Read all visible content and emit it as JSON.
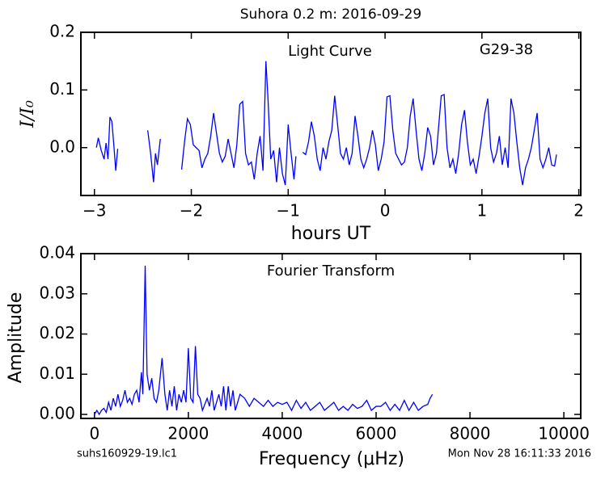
{
  "chart_data": [
    {
      "type": "line",
      "title": "Suhora 0.2 m:  2016-09-29",
      "annotations": [
        "Light Curve",
        "G29-38"
      ],
      "x_label": "hours UT",
      "y_label": "I/I₀",
      "color": "#0000ff",
      "xlim": [
        -3.14,
        2.02
      ],
      "ylim": [
        -0.083,
        0.2
      ],
      "xticks": [
        {
          "value": -3,
          "label": "−3"
        },
        {
          "value": -2,
          "label": "−2"
        },
        {
          "value": -1,
          "label": "−1"
        },
        0,
        1,
        2
      ],
      "yticks": [
        {
          "value": 0,
          "label": "0.0"
        },
        0.1,
        0.2
      ],
      "x": [
        -2.98,
        -2.96,
        -2.93,
        -2.9,
        -2.88,
        -2.86,
        -2.84,
        -2.82,
        -2.8,
        -2.78,
        -2.76,
        null,
        -2.45,
        -2.42,
        -2.39,
        -2.37,
        -2.35,
        -2.32,
        null,
        -2.1,
        -2.07,
        -2.04,
        -2.01,
        -1.98,
        -1.95,
        -1.92,
        -1.89,
        -1.86,
        -1.83,
        -1.8,
        -1.77,
        -1.74,
        -1.71,
        -1.68,
        -1.65,
        -1.62,
        -1.59,
        -1.56,
        -1.53,
        -1.5,
        -1.47,
        -1.44,
        -1.41,
        -1.38,
        -1.35,
        -1.32,
        -1.29,
        -1.26,
        -1.23,
        -1.21,
        -1.18,
        -1.15,
        -1.12,
        -1.09,
        -1.06,
        -1.03,
        -1.0,
        -0.97,
        -0.94,
        -0.92,
        null,
        -0.85,
        -0.82,
        -0.79,
        -0.76,
        -0.73,
        -0.7,
        -0.67,
        -0.64,
        -0.61,
        -0.58,
        -0.55,
        -0.52,
        -0.49,
        -0.46,
        -0.43,
        -0.4,
        -0.37,
        -0.34,
        -0.31,
        -0.28,
        -0.25,
        -0.22,
        -0.19,
        -0.16,
        -0.13,
        -0.1,
        -0.07,
        -0.04,
        -0.01,
        0.02,
        0.05,
        0.08,
        0.11,
        0.14,
        0.17,
        0.2,
        0.23,
        0.26,
        0.29,
        0.32,
        0.35,
        0.38,
        0.41,
        0.44,
        0.47,
        0.5,
        0.53,
        0.56,
        0.58,
        0.61,
        0.64,
        0.67,
        0.7,
        0.73,
        0.76,
        0.79,
        0.82,
        0.85,
        0.88,
        0.91,
        0.94,
        0.97,
        1.0,
        1.03,
        1.06,
        1.09,
        1.12,
        1.15,
        1.18,
        1.21,
        1.24,
        1.27,
        1.3,
        1.33,
        1.36,
        1.39,
        1.42,
        1.45,
        1.48,
        1.51,
        1.54,
        1.57,
        1.6,
        1.63,
        1.66,
        1.69,
        1.72,
        1.75,
        1.77
      ],
      "values": [
        0.0,
        0.017,
        -0.005,
        -0.02,
        0.008,
        -0.02,
        0.053,
        0.045,
        0.005,
        -0.04,
        -0.002,
        null,
        0.03,
        -0.01,
        -0.06,
        -0.01,
        -0.03,
        0.015,
        null,
        -0.038,
        0.01,
        0.05,
        0.04,
        0.005,
        0.0,
        -0.005,
        -0.035,
        -0.02,
        -0.01,
        0.02,
        0.06,
        0.025,
        -0.01,
        -0.025,
        -0.015,
        0.015,
        -0.01,
        -0.035,
        0.005,
        0.075,
        0.08,
        -0.01,
        -0.03,
        -0.025,
        -0.055,
        -0.01,
        0.02,
        -0.04,
        0.15,
        0.09,
        -0.02,
        -0.005,
        -0.06,
        0.0,
        -0.045,
        -0.065,
        0.04,
        -0.01,
        -0.055,
        -0.015,
        null,
        -0.008,
        -0.012,
        0.01,
        0.045,
        0.02,
        -0.02,
        -0.04,
        0.0,
        -0.02,
        0.01,
        0.03,
        0.09,
        0.04,
        -0.01,
        -0.02,
        0.0,
        -0.03,
        -0.01,
        0.055,
        0.02,
        -0.02,
        -0.035,
        -0.02,
        0.0,
        0.03,
        0.005,
        -0.04,
        -0.02,
        0.01,
        0.088,
        0.09,
        0.03,
        -0.01,
        -0.02,
        -0.03,
        -0.025,
        0.0,
        0.055,
        0.085,
        0.03,
        -0.02,
        -0.04,
        -0.01,
        0.035,
        0.02,
        -0.03,
        -0.01,
        0.05,
        0.09,
        0.092,
        0.0,
        -0.035,
        -0.02,
        -0.045,
        -0.01,
        0.04,
        0.065,
        0.01,
        -0.03,
        -0.02,
        -0.045,
        -0.015,
        0.02,
        0.06,
        0.085,
        0.0,
        -0.025,
        -0.01,
        0.02,
        -0.03,
        0.0,
        -0.035,
        0.085,
        0.06,
        0.01,
        -0.035,
        -0.065,
        -0.035,
        -0.02,
        0.0,
        0.03,
        0.06,
        -0.02,
        -0.035,
        -0.02,
        0.0,
        -0.03,
        -0.032,
        -0.012
      ]
    },
    {
      "type": "line",
      "annotations": [
        "Fourier Transform"
      ],
      "x_label": "Frequency (μHz)",
      "y_label": "Amplitude",
      "color": "#0000ff",
      "xlim": [
        -290,
        10360
      ],
      "ylim": [
        -0.001,
        0.04
      ],
      "xticks": [
        0,
        2000,
        4000,
        6000,
        8000,
        10000
      ],
      "yticks": [
        {
          "value": 0,
          "label": "0.00"
        },
        0.01,
        0.02,
        0.03,
        0.04
      ],
      "x": [
        0,
        50,
        100,
        150,
        200,
        250,
        300,
        350,
        400,
        450,
        500,
        550,
        600,
        650,
        700,
        750,
        800,
        850,
        900,
        950,
        1000,
        1030,
        1080,
        1120,
        1170,
        1220,
        1270,
        1320,
        1370,
        1440,
        1500,
        1550,
        1600,
        1650,
        1700,
        1750,
        1800,
        1850,
        1900,
        1950,
        2000,
        2050,
        2100,
        2150,
        2200,
        2250,
        2300,
        2400,
        2450,
        2500,
        2550,
        2650,
        2700,
        2750,
        2800,
        2850,
        2900,
        2950,
        3000,
        3100,
        3200,
        3300,
        3400,
        3500,
        3600,
        3700,
        3800,
        3900,
        4000,
        4100,
        4200,
        4300,
        4400,
        4500,
        4600,
        4700,
        4800,
        4900,
        5000,
        5100,
        5200,
        5300,
        5400,
        5500,
        5600,
        5700,
        5800,
        5900,
        6000,
        6100,
        6200,
        6300,
        6400,
        6500,
        6600,
        6700,
        6800,
        6900,
        7000,
        7100,
        7150,
        7200
      ],
      "values": [
        0.0,
        0.001,
        0.0,
        0.001,
        0.0015,
        0.0005,
        0.003,
        0.001,
        0.004,
        0.002,
        0.005,
        0.002,
        0.0035,
        0.006,
        0.003,
        0.004,
        0.0025,
        0.005,
        0.006,
        0.003,
        0.0105,
        0.005,
        0.037,
        0.01,
        0.006,
        0.009,
        0.004,
        0.003,
        0.006,
        0.014,
        0.005,
        0.001,
        0.006,
        0.002,
        0.007,
        0.001,
        0.005,
        0.003,
        0.006,
        0.003,
        0.0165,
        0.004,
        0.003,
        0.017,
        0.005,
        0.004,
        0.001,
        0.004,
        0.002,
        0.006,
        0.001,
        0.005,
        0.002,
        0.007,
        0.001,
        0.007,
        0.002,
        0.006,
        0.001,
        0.005,
        0.004,
        0.002,
        0.004,
        0.003,
        0.002,
        0.0035,
        0.002,
        0.003,
        0.0025,
        0.003,
        0.001,
        0.0035,
        0.0015,
        0.003,
        0.001,
        0.002,
        0.003,
        0.001,
        0.002,
        0.003,
        0.001,
        0.002,
        0.001,
        0.0025,
        0.0015,
        0.002,
        0.0035,
        0.001,
        0.002,
        0.002,
        0.003,
        0.001,
        0.0025,
        0.001,
        0.0035,
        0.001,
        0.003,
        0.001,
        0.002,
        0.0025,
        0.004,
        0.005
      ]
    }
  ],
  "footer": {
    "file": "suhs160929-19.lc1",
    "date": "Mon Nov 28 16:11:33 2016"
  }
}
